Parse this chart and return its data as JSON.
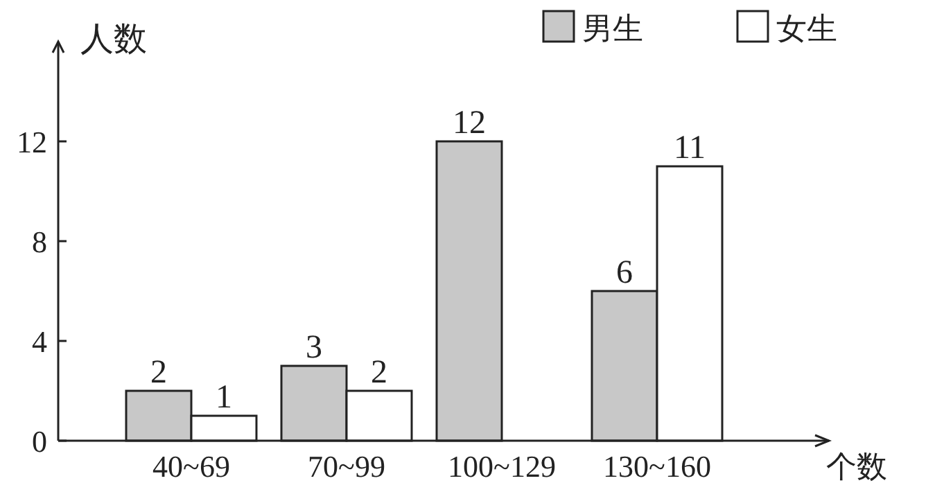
{
  "chart_data": {
    "type": "bar",
    "ylabel": "人数",
    "xlabel": "个数",
    "categories": [
      "40~69",
      "70~99",
      "100~129",
      "130~160"
    ],
    "series": [
      {
        "name": "男生",
        "color": "#c8c8c8",
        "values": [
          2,
          3,
          12,
          6
        ]
      },
      {
        "name": "女生",
        "color": "#ffffff",
        "values": [
          1,
          2,
          null,
          11
        ]
      }
    ],
    "ylim": [
      0,
      16
    ],
    "yticks": [
      0,
      4,
      8,
      12
    ],
    "legend": "top right",
    "data_labels": true
  }
}
